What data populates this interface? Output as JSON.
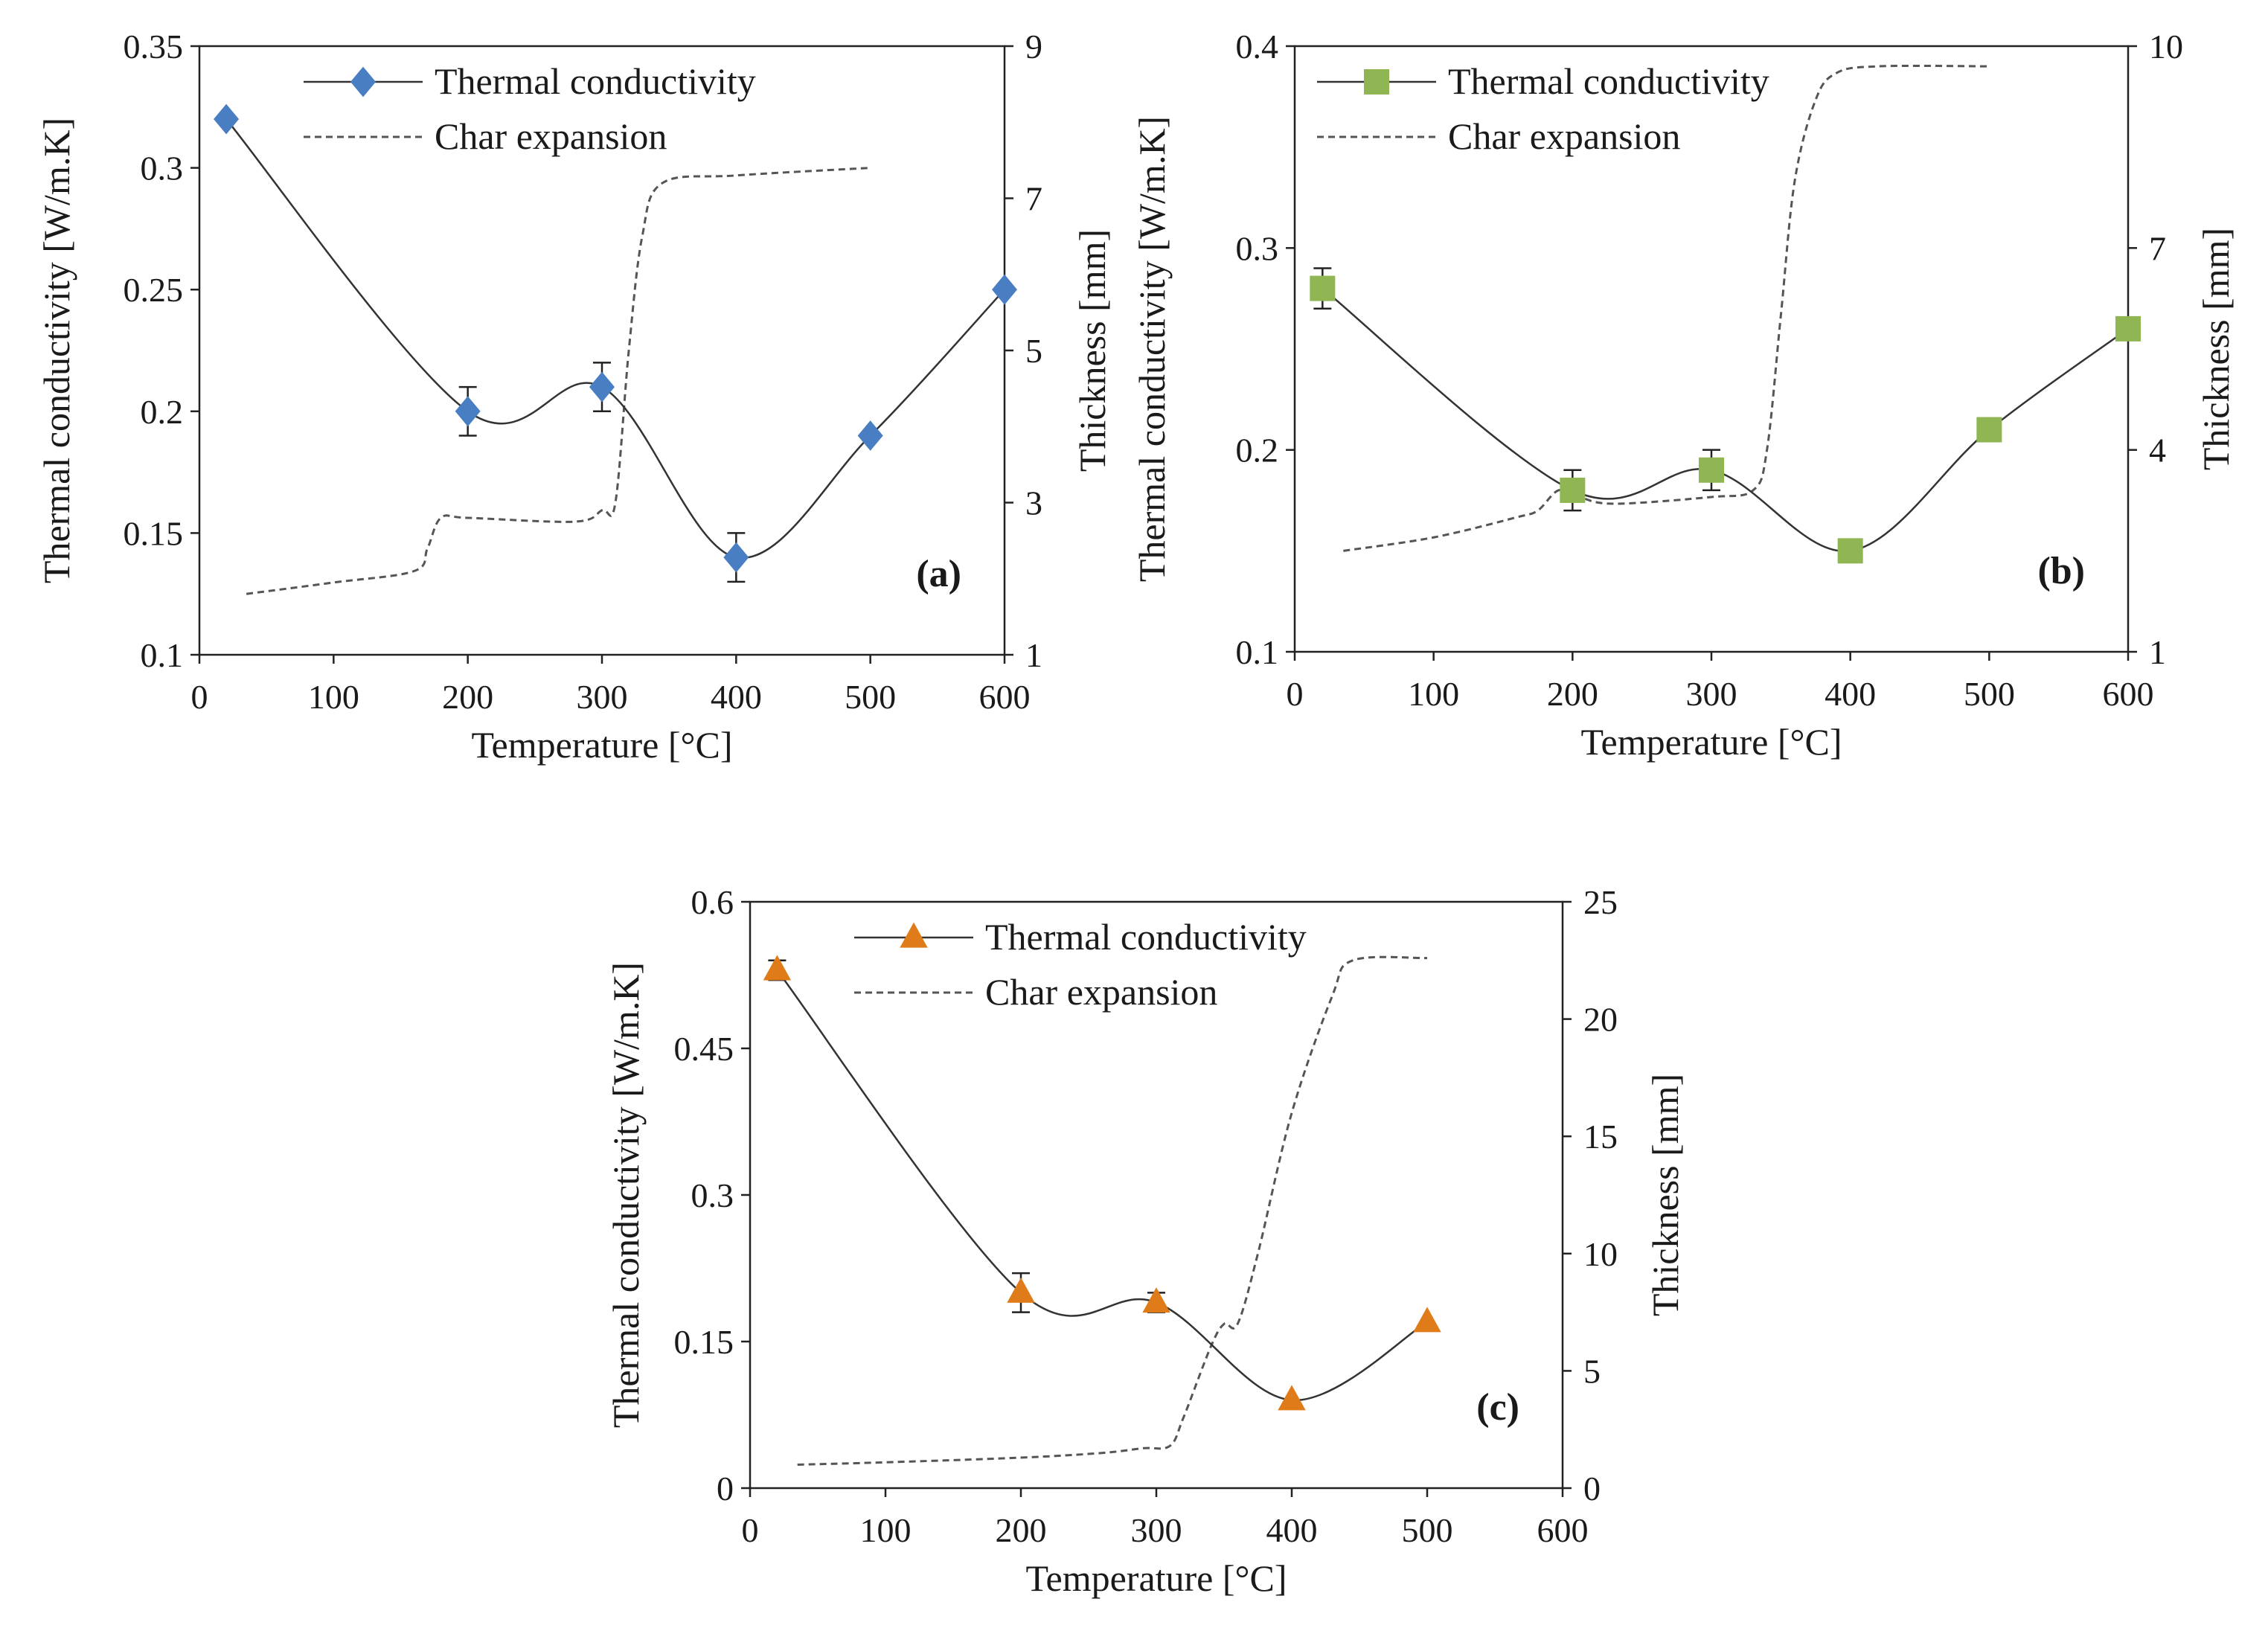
{
  "figure": {
    "description_free": true
  },
  "chart_data": [
    {
      "type": "line",
      "panel_label": "(a)",
      "xlabel": "Temperature [°C]",
      "ylabel": "Thermal conductivity [W/m.K]",
      "y2label": "Thickness [mm]",
      "xlim": [
        0,
        600
      ],
      "ylim": [
        0.1,
        0.35
      ],
      "y2lim": [
        1,
        9
      ],
      "xticks": [
        0,
        100,
        200,
        300,
        400,
        500,
        600
      ],
      "yticks": [
        0.1,
        0.15,
        0.2,
        0.25,
        0.3,
        0.35
      ],
      "yticklabels": [
        "0.1",
        "0.15",
        "0.2",
        "0.25",
        "0.3",
        "0.35"
      ],
      "y2ticks": [
        1,
        3,
        5,
        7,
        9
      ],
      "legend_placement": "top-center",
      "marker": "diamond",
      "marker_color": "#4a7ec2",
      "series": [
        {
          "name": "Thermal conductivity",
          "x": [
            20,
            200,
            300,
            400,
            500,
            600
          ],
          "values": [
            0.32,
            0.2,
            0.21,
            0.14,
            0.19,
            0.25
          ],
          "errors": [
            0,
            0.01,
            0.01,
            0.01,
            0,
            0
          ]
        },
        {
          "name": "Char expansion",
          "axis": "secondary",
          "x": [
            35,
            100,
            160,
            170,
            180,
            200,
            280,
            300,
            310,
            320,
            330,
            345,
            400,
            500
          ],
          "values": [
            1.8,
            1.95,
            2.1,
            2.4,
            2.8,
            2.8,
            2.75,
            2.9,
            3.0,
            5.0,
            6.5,
            7.2,
            7.3,
            7.4
          ]
        }
      ]
    },
    {
      "type": "line",
      "panel_label": "(b)",
      "xlabel": "Temperature [°C]",
      "ylabel": "Thermal conductivity [W/m.K]",
      "y2label": "Thickness [mm]",
      "xlim": [
        0,
        600
      ],
      "ylim": [
        0.1,
        0.4
      ],
      "y2lim": [
        1,
        10
      ],
      "xticks": [
        0,
        100,
        200,
        300,
        400,
        500,
        600
      ],
      "yticks": [
        0.1,
        0.2,
        0.3,
        0.4
      ],
      "yticklabels": [
        "0.1",
        "0.2",
        "0.3",
        "0.4"
      ],
      "y2ticks": [
        1,
        4,
        7,
        10
      ],
      "legend_placement": "top-center",
      "marker": "square",
      "marker_color": "#8fb653",
      "series": [
        {
          "name": "Thermal conductivity",
          "x": [
            20,
            200,
            300,
            400,
            500,
            600
          ],
          "values": [
            0.28,
            0.18,
            0.19,
            0.15,
            0.21,
            0.26
          ],
          "errors": [
            0.01,
            0.01,
            0.01,
            0,
            0,
            0
          ]
        },
        {
          "name": "Char expansion",
          "axis": "secondary",
          "x": [
            35,
            100,
            160,
            175,
            190,
            205,
            230,
            300,
            330,
            340,
            350,
            360,
            375,
            390,
            420,
            500
          ],
          "values": [
            2.5,
            2.7,
            3.0,
            3.1,
            3.4,
            3.3,
            3.2,
            3.3,
            3.4,
            4.0,
            6.0,
            8.0,
            9.2,
            9.6,
            9.7,
            9.7
          ]
        }
      ]
    },
    {
      "type": "line",
      "panel_label": "(c)",
      "xlabel": "Temperature [°C]",
      "ylabel": "Thermal conductivity [W/m.K]",
      "y2label": "Thickness [mm]",
      "xlim": [
        0,
        600
      ],
      "ylim": [
        0,
        0.6
      ],
      "y2lim": [
        0,
        25
      ],
      "xticks": [
        0,
        100,
        200,
        300,
        400,
        500,
        600
      ],
      "yticks": [
        0,
        0.15,
        0.3,
        0.45,
        0.6
      ],
      "yticklabels": [
        "0",
        "0.15",
        "0.3",
        "0.45",
        "0.6"
      ],
      "y2ticks": [
        0,
        5,
        10,
        15,
        20,
        25
      ],
      "legend_placement": "top-center",
      "marker": "triangle",
      "marker_color": "#e07b1a",
      "series": [
        {
          "name": "Thermal conductivity",
          "x": [
            20,
            200,
            300,
            400,
            500
          ],
          "values": [
            0.53,
            0.2,
            0.19,
            0.09,
            0.17
          ],
          "errors": [
            0.01,
            0.02,
            0.01,
            0,
            0
          ]
        },
        {
          "name": "Char expansion",
          "axis": "secondary",
          "x": [
            35,
            100,
            200,
            260,
            290,
            310,
            320,
            340,
            350,
            360,
            375,
            400,
            430,
            445,
            500
          ],
          "values": [
            1.0,
            1.1,
            1.3,
            1.5,
            1.7,
            1.8,
            3.0,
            6.0,
            7.0,
            7.0,
            10.0,
            16.0,
            21.0,
            22.5,
            22.6
          ]
        }
      ]
    }
  ]
}
